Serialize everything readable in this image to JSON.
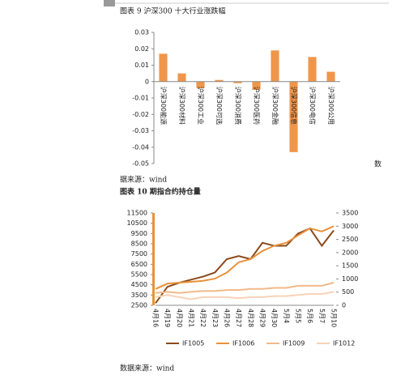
{
  "chart_data": [
    {
      "type": "bar",
      "title": "图表 9 沪深300 十大行业涨跌幅",
      "categories": [
        "沪深300能源",
        "沪深300材料",
        "沪深300工业",
        "沪深300可选",
        "沪深300消费",
        "沪深300医药",
        "沪深300金融",
        "沪深300信息",
        "沪深300电信",
        "沪深300公用"
      ],
      "values": [
        0.017,
        0.005,
        -0.004,
        0.001,
        -0.001,
        -0.005,
        0.019,
        -0.043,
        0.015,
        0.006
      ],
      "color": "#f0964a",
      "ylim": [
        -0.05,
        0.03
      ],
      "yticks": [
        0.03,
        0.02,
        0.01,
        0,
        -0.01,
        -0.02,
        -0.03,
        -0.04,
        -0.05
      ],
      "source": "据来源：wind"
    },
    {
      "type": "line",
      "title": "图表 10 期指合约持仓量",
      "categories": [
        "4月16",
        "4月19",
        "4月20",
        "4月21",
        "4月22",
        "4月23",
        "4月26",
        "4月27",
        "4月28",
        "4月29",
        "4月30",
        "5月4",
        "5月5",
        "5月6",
        "5月7",
        "5月10"
      ],
      "series": [
        {
          "name": "IF1005",
          "color": "#8b4a1c",
          "values": [
            2700,
            4300,
            4700,
            5000,
            5300,
            5700,
            7000,
            7300,
            7000,
            8600,
            8300,
            8300,
            9500,
            10000,
            8300,
            9800
          ]
        },
        {
          "name": "IF1006",
          "color": "#e8923a",
          "axis": "y2",
          "values": [
            620,
            820,
            860,
            890,
            930,
            1010,
            1240,
            1630,
            1750,
            2060,
            2260,
            2370,
            2650,
            2920,
            2800,
            3000
          ]
        },
        {
          "name": "IF1009",
          "color": "#f2b98a",
          "axis": "y2",
          "values": [
            470,
            510,
            470,
            510,
            540,
            540,
            580,
            580,
            620,
            620,
            660,
            660,
            740,
            740,
            740,
            860
          ]
        },
        {
          "name": "IF1012",
          "color": "#f7d3b8",
          "axis": "y2",
          "values": [
            310,
            390,
            310,
            230,
            310,
            310,
            310,
            270,
            310,
            310,
            350,
            350,
            390,
            430,
            430,
            510
          ]
        }
      ],
      "ylim": [
        2500,
        11500
      ],
      "yticks": [
        11500,
        10500,
        9500,
        8500,
        7500,
        6500,
        5500,
        4500,
        3500,
        2500
      ],
      "y2lim": [
        0,
        3500
      ],
      "y2ticks": [
        3500,
        3000,
        2500,
        2000,
        1500,
        1000,
        500,
        0
      ],
      "source": "数据来源：wind"
    }
  ],
  "page": {
    "margin_text": "数"
  }
}
